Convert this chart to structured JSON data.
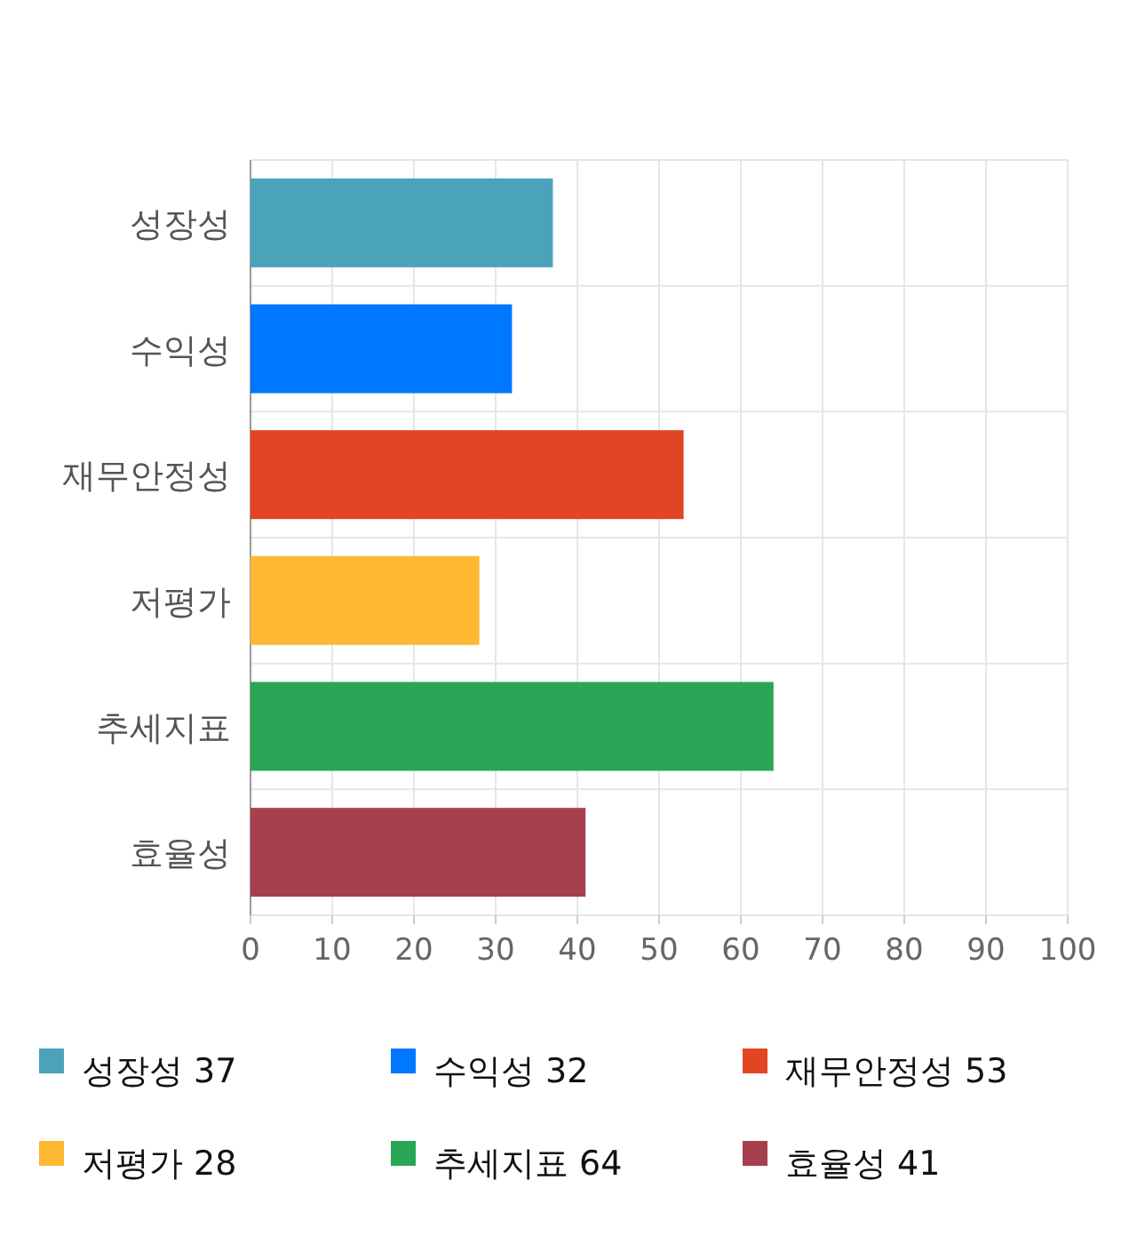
{
  "chart_data": {
    "type": "bar",
    "orientation": "horizontal",
    "stacked": true,
    "categories": [
      "성장성",
      "수익성",
      "재무안정성",
      "저평가",
      "추세지표",
      "효율성"
    ],
    "series": [
      {
        "name": "성장성 37",
        "color": "#4aa3ba",
        "values": [
          37,
          null,
          null,
          null,
          null,
          null
        ]
      },
      {
        "name": "수익성 32",
        "color": "#0077ff",
        "values": [
          null,
          32,
          null,
          null,
          null,
          null
        ]
      },
      {
        "name": "재무안정성 53",
        "color": "#e24524",
        "values": [
          null,
          null,
          53,
          null,
          null,
          null
        ]
      },
      {
        "name": "저평가 28",
        "color": "#ffb833",
        "values": [
          null,
          null,
          null,
          28,
          null,
          null
        ]
      },
      {
        "name": "추세지표 64",
        "color": "#28a656",
        "values": [
          null,
          null,
          null,
          null,
          64,
          null
        ]
      },
      {
        "name": "효율성 41",
        "color": "#a6404f",
        "values": [
          null,
          null,
          null,
          null,
          null,
          41
        ]
      }
    ],
    "xlim": [
      0,
      100
    ],
    "xticks": [
      0,
      10,
      20,
      30,
      40,
      50,
      60,
      70,
      80,
      90,
      100
    ],
    "grid": true,
    "legend": "bottom"
  }
}
